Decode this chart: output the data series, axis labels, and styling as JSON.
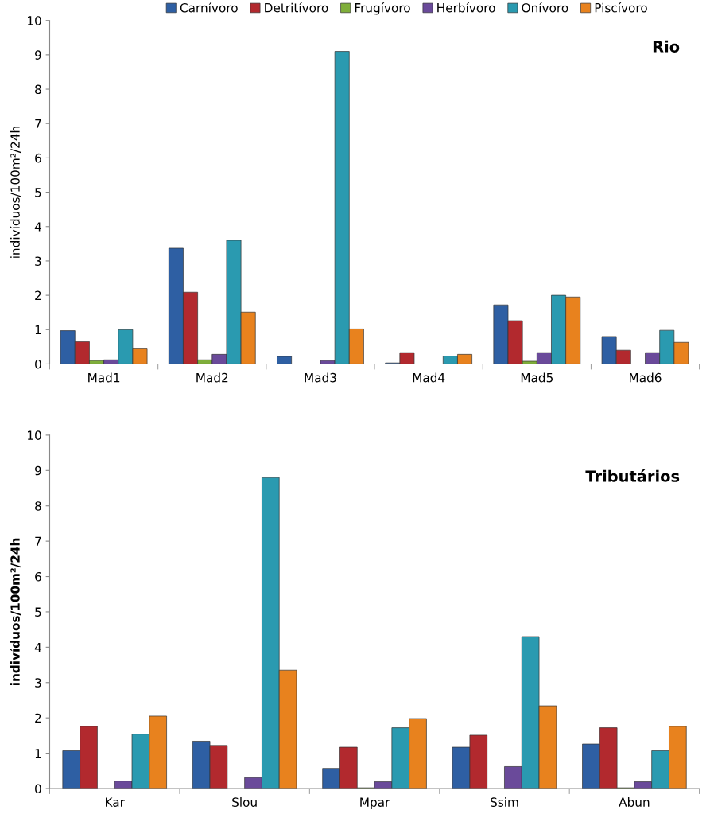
{
  "chart_data": [
    {
      "type": "bar",
      "title": "Rio",
      "ylabel": "indivíduos/100m²/24h",
      "categories": [
        "Mad1",
        "Mad2",
        "Mad3",
        "Mad4",
        "Mad5",
        "Mad6"
      ],
      "ylim": [
        0,
        10
      ],
      "yticks": [
        0,
        1,
        2,
        3,
        4,
        5,
        6,
        7,
        8,
        9,
        10
      ],
      "grid": false,
      "legend": "top",
      "series": [
        {
          "name": "Carnívoro",
          "color": "#2e5fa3",
          "values": [
            0.97,
            3.37,
            0.22,
            0.03,
            1.72,
            0.8
          ]
        },
        {
          "name": "Detritívoro",
          "color": "#b2292e",
          "values": [
            0.65,
            2.09,
            0,
            0.33,
            1.26,
            0.4
          ]
        },
        {
          "name": "Frugívoro",
          "color": "#7fae3a",
          "values": [
            0.1,
            0.12,
            0,
            0,
            0.08,
            0
          ]
        },
        {
          "name": "Herbívoro",
          "color": "#6a4a9a",
          "values": [
            0.12,
            0.28,
            0.1,
            0,
            0.33,
            0.33
          ]
        },
        {
          "name": "Onívoro",
          "color": "#2a9ab0",
          "values": [
            1.0,
            3.6,
            9.1,
            0.23,
            2.0,
            0.98
          ]
        },
        {
          "name": "Piscívoro",
          "color": "#e8821e",
          "values": [
            0.46,
            1.51,
            1.02,
            0.28,
            1.95,
            0.63
          ]
        }
      ]
    },
    {
      "type": "bar",
      "title": "Tributários",
      "ylabel": "indivíduos/100m²/24h",
      "categories": [
        "Kar",
        "Slou",
        "Mpar",
        "Ssim",
        "Abun"
      ],
      "ylim": [
        0,
        10
      ],
      "yticks": [
        0,
        1,
        2,
        3,
        4,
        5,
        6,
        7,
        8,
        9,
        10
      ],
      "grid": false,
      "legend": false,
      "series": [
        {
          "color": "#2e5fa3",
          "values": [
            1.07,
            1.34,
            0.57,
            1.17,
            1.26
          ]
        },
        {
          "color": "#b2292e",
          "values": [
            1.76,
            1.22,
            1.17,
            1.51,
            1.72
          ]
        },
        {
          "color": "#7fae3a",
          "values": [
            0,
            0,
            0.02,
            0,
            0.02
          ]
        },
        {
          "color": "#6a4a9a",
          "values": [
            0.21,
            0.31,
            0.19,
            0.62,
            0.19
          ]
        },
        {
          "color": "#2a9ab0",
          "values": [
            1.54,
            8.8,
            1.72,
            4.3,
            1.07
          ]
        },
        {
          "color": "#e8821e",
          "values": [
            2.05,
            3.35,
            1.98,
            2.34,
            1.76
          ]
        }
      ]
    }
  ]
}
